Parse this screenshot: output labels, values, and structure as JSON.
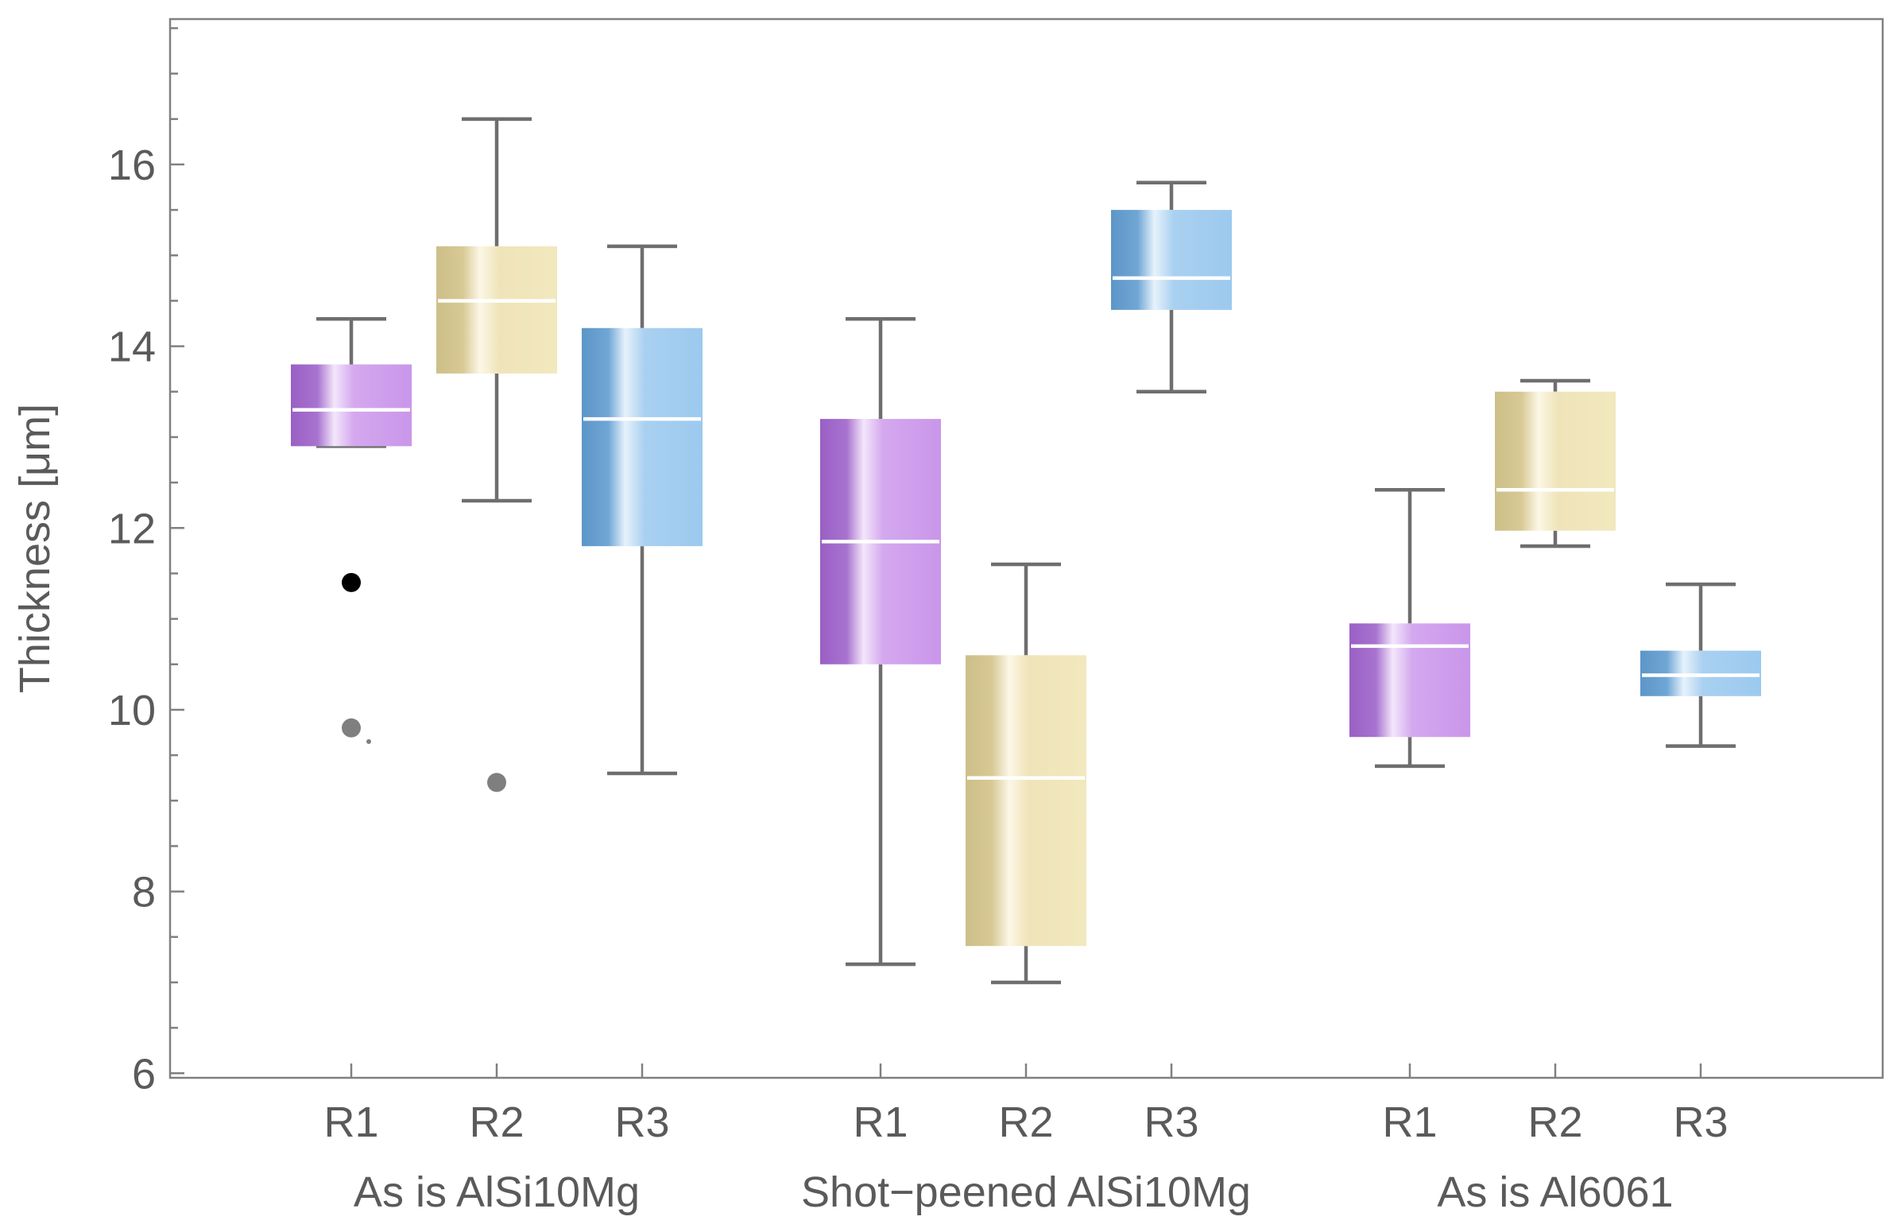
{
  "chart_data": {
    "type": "boxplot",
    "ylabel": "Thickness [μm]",
    "ylim": [
      5.95,
      17.6
    ],
    "yticks": [
      6,
      8,
      10,
      12,
      14,
      16
    ],
    "yticks_minor_step": 0.5,
    "grid": false,
    "colors": {
      "R1": "#b17fd9",
      "R2": "#e4d59f",
      "R3": "#8ebde6",
      "median": "#ffffff",
      "whisker": "#6e6e6e",
      "axis": "#808080"
    },
    "groups": [
      {
        "name": "As is AlSi10Mg",
        "boxes": [
          {
            "label": "R1",
            "series": "R1",
            "whisker_low": 12.9,
            "q1": 12.9,
            "median": 13.3,
            "q3": 13.8,
            "whisker_high": 14.3,
            "outliers": [
              {
                "value": 11.4,
                "kind": "far"
              },
              {
                "value": 9.8,
                "kind": "near"
              },
              {
                "value": 9.65,
                "kind": "tiny"
              }
            ]
          },
          {
            "label": "R2",
            "series": "R2",
            "whisker_low": 12.3,
            "q1": 13.7,
            "median": 14.5,
            "q3": 15.1,
            "whisker_high": 16.5,
            "outliers": [
              {
                "value": 9.2,
                "kind": "near"
              }
            ]
          },
          {
            "label": "R3",
            "series": "R3",
            "whisker_low": 9.3,
            "q1": 11.8,
            "median": 13.2,
            "q3": 14.2,
            "whisker_high": 15.1,
            "outliers": []
          }
        ]
      },
      {
        "name": "Shot−peened AlSi10Mg",
        "boxes": [
          {
            "label": "R1",
            "series": "R1",
            "whisker_low": 7.2,
            "q1": 10.5,
            "median": 11.85,
            "q3": 13.2,
            "whisker_high": 14.3,
            "outliers": []
          },
          {
            "label": "R2",
            "series": "R2",
            "whisker_low": 7.0,
            "q1": 7.4,
            "median": 9.25,
            "q3": 10.6,
            "whisker_high": 11.6,
            "outliers": []
          },
          {
            "label": "R3",
            "series": "R3",
            "whisker_low": 13.5,
            "q1": 14.4,
            "median": 14.75,
            "q3": 15.5,
            "whisker_high": 15.8,
            "outliers": []
          }
        ]
      },
      {
        "name": "As is Al6061",
        "boxes": [
          {
            "label": "R1",
            "series": "R1",
            "whisker_low": 9.38,
            "q1": 9.7,
            "median": 10.7,
            "q3": 10.95,
            "whisker_high": 12.42,
            "outliers": []
          },
          {
            "label": "R2",
            "series": "R2",
            "whisker_low": 11.8,
            "q1": 11.97,
            "median": 12.42,
            "q3": 13.5,
            "whisker_high": 13.62,
            "outliers": []
          },
          {
            "label": "R3",
            "series": "R3",
            "whisker_low": 9.6,
            "q1": 10.15,
            "median": 10.38,
            "q3": 10.65,
            "whisker_high": 11.38,
            "outliers": []
          }
        ]
      }
    ]
  }
}
